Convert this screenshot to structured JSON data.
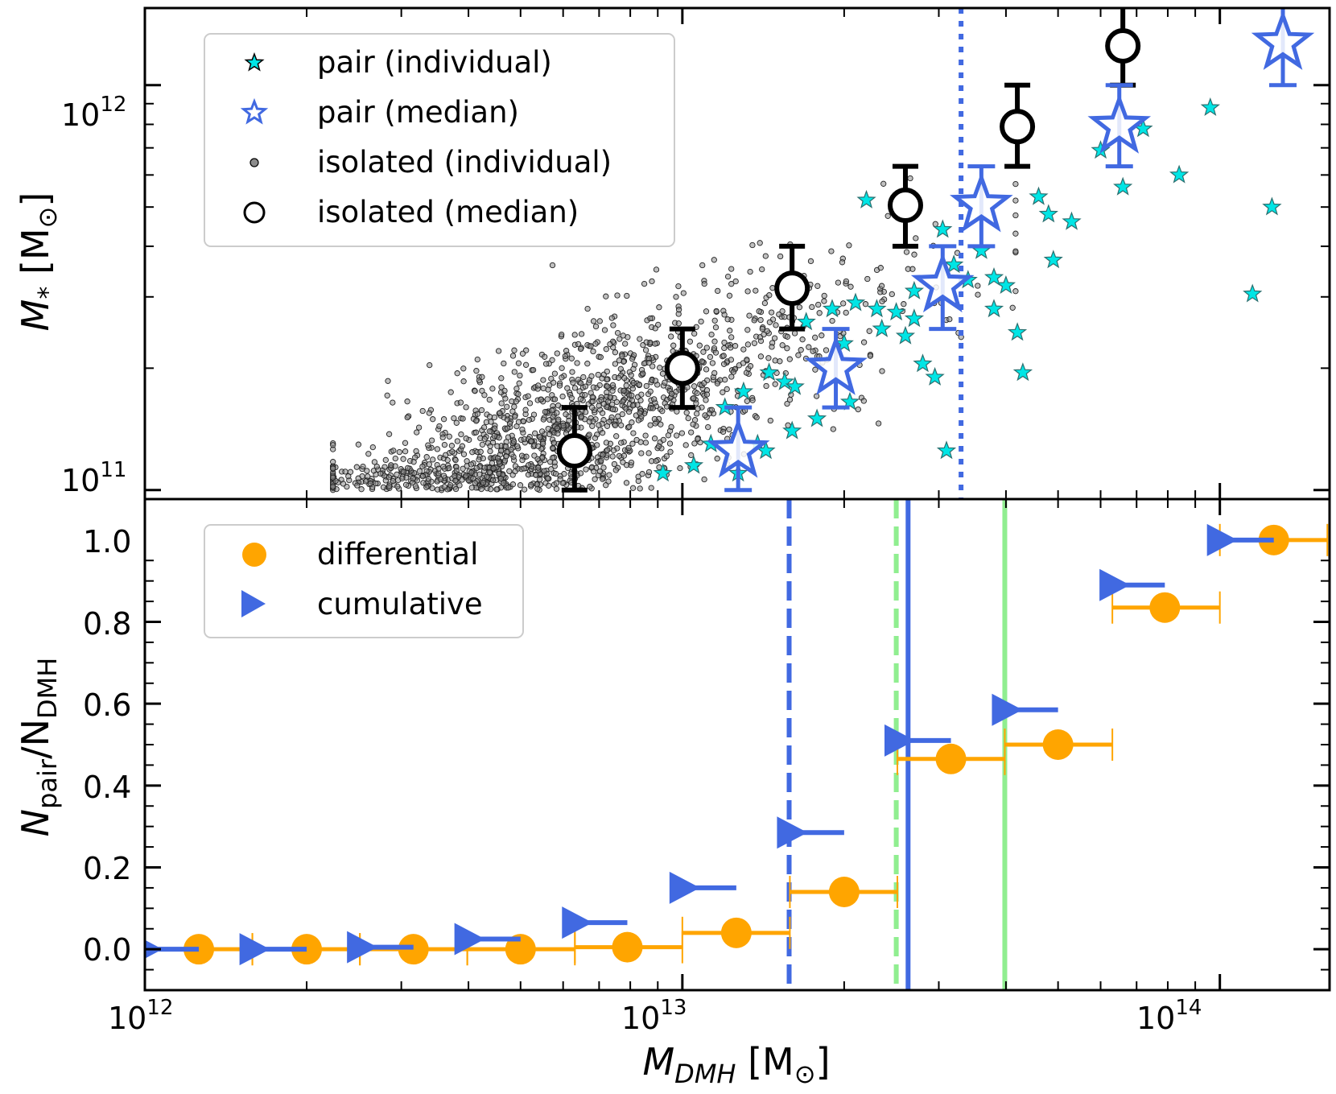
{
  "chart_data": [
    {
      "type": "scatter",
      "panel": "top",
      "xscale": "log",
      "yscale": "log",
      "xlim": [
        1000000000000.0,
        160000000000000.0
      ],
      "ylim": [
        95000000000.0,
        1550000000000.0
      ],
      "ylabel": "M* [M⊙]",
      "ylabel_main": "M",
      "ylabel_sub": "*",
      "ylabel_rest": " [M",
      "ylabel_sun": "⊙",
      "ylabel_close": "]",
      "ytick_labels": [
        {
          "value": 100000000000.0,
          "base": "10",
          "exp": "11"
        },
        {
          "value": 1000000000000.0,
          "base": "10",
          "exp": "12"
        }
      ],
      "vline_dotted_x": 33000000000000.0,
      "legend": {
        "position": "upper-left",
        "entries": [
          {
            "label": "pair (individual)"
          },
          {
            "label": "pair (median)"
          },
          {
            "label": "isolated (individual)"
          },
          {
            "label": "isolated (median)"
          }
        ]
      },
      "series": [
        {
          "name": "isolated (median)",
          "x": [
            6300000000000.0,
            10000000000000.0,
            16000000000000.0,
            26000000000000.0,
            42000000000000.0,
            66000000000000.0
          ],
          "y": [
            125000000000.0,
            200000000000.0,
            315000000000.0,
            505000000000.0,
            790000000000.0,
            1250000000000.0
          ],
          "yerr_low": [
            100000000000.0,
            160000000000.0,
            250000000000.0,
            400000000000.0,
            630000000000.0,
            1000000000000.0
          ],
          "yerr_high": [
            160000000000.0,
            250000000000.0,
            400000000000.0,
            630000000000.0,
            1000000000000.0,
            1600000000000.0
          ]
        },
        {
          "name": "pair (median)",
          "x": [
            12700000000000.0,
            19300000000000.0,
            30500000000000.0,
            36000000000000.0,
            65000000000000.0,
            131000000000000.0
          ],
          "y": [
            125000000000.0,
            200000000000.0,
            320000000000.0,
            505000000000.0,
            790000000000.0,
            1270000000000.0
          ],
          "yerr_low": [
            100000000000.0,
            160000000000.0,
            250000000000.0,
            400000000000.0,
            630000000000.0,
            1000000000000.0
          ],
          "yerr_high": [
            160000000000.0,
            250000000000.0,
            400000000000.0,
            630000000000.0,
            1000000000000.0,
            1600000000000.0
          ]
        },
        {
          "name": "pair (individual)",
          "x": [
            9200000000000.0,
            10500000000000.0,
            11300000000000.0,
            12000000000000.0,
            13000000000000.0,
            13800000000000.0,
            14500000000000.0,
            15500000000000.0,
            16200000000000.0,
            17000000000000.0,
            17800000000000.0,
            19000000000000.0,
            20000000000000.0,
            21000000000000.0,
            22000000000000.0,
            23500000000000.0,
            25000000000000.0,
            26000000000000.0,
            27000000000000.0,
            28000000000000.0,
            29500000000000.0,
            31000000000000.0,
            32000000000000.0,
            34000000000000.0,
            36000000000000.0,
            38000000000000.0,
            40000000000000.0,
            43000000000000.0,
            46000000000000.0,
            49000000000000.0,
            53000000000000.0,
            60000000000000.0,
            66000000000000.0,
            72000000000000.0,
            84000000000000.0,
            96000000000000.0,
            115000000000000.0,
            125000000000000.0,
            20500000000000.0,
            27000000000000.0,
            30500000000000.0,
            38000000000000.0,
            42000000000000.0,
            12700000000000.0,
            16000000000000.0,
            14300000000000.0,
            23000000000000.0,
            48000000000000.0
          ],
          "y": [
            110000000000.0,
            115000000000.0,
            130000000000.0,
            160000000000.0,
            175000000000.0,
            130000000000.0,
            195000000000.0,
            185000000000.0,
            180000000000.0,
            260000000000.0,
            150000000000.0,
            280000000000.0,
            230000000000.0,
            290000000000.0,
            520000000000.0,
            250000000000.0,
            275000000000.0,
            240000000000.0,
            310000000000.0,
            205000000000.0,
            190000000000.0,
            125000000000.0,
            360000000000.0,
            330000000000.0,
            390000000000.0,
            280000000000.0,
            320000000000.0,
            195000000000.0,
            530000000000.0,
            370000000000.0,
            460000000000.0,
            690000000000.0,
            560000000000.0,
            780000000000.0,
            600000000000.0,
            880000000000.0,
            305000000000.0,
            500000000000.0,
            165000000000.0,
            265000000000.0,
            440000000000.0,
            335000000000.0,
            245000000000.0,
            110000000000.0,
            140000000000.0,
            125000000000.0,
            280000000000.0,
            480000000000.0
          ]
        }
      ]
    },
    {
      "type": "scatter",
      "panel": "bottom",
      "xscale": "log",
      "xlim": [
        1000000000000.0,
        160000000000000.0
      ],
      "ylim": [
        -0.1,
        1.1
      ],
      "xlabel": "M_DMH [M⊙]",
      "xlabel_main": "M",
      "xlabel_sub": "DMH",
      "xlabel_rest": " [M",
      "xlabel_sun": "⊙",
      "xlabel_close": "]",
      "ylabel": "N_pair/N_DMH",
      "ylabel_n1": "N",
      "ylabel_sub1": "pair",
      "ylabel_slash": "/N",
      "ylabel_sub2": "DMH",
      "xtick_labels": [
        {
          "value": 1000000000000.0,
          "base": "10",
          "exp": "12"
        },
        {
          "value": 10000000000000.0,
          "base": "10",
          "exp": "13"
        },
        {
          "value": 100000000000000.0,
          "base": "10",
          "exp": "14"
        }
      ],
      "ytick_labels": [
        {
          "value": 0.0,
          "label": "0.0"
        },
        {
          "value": 0.2,
          "label": "0.2"
        },
        {
          "value": 0.4,
          "label": "0.4"
        },
        {
          "value": 0.6,
          "label": "0.6"
        },
        {
          "value": 0.8,
          "label": "0.8"
        },
        {
          "value": 1.0,
          "label": "1.0"
        }
      ],
      "vlines": [
        {
          "x": 15800000000000.0,
          "color": "#4169e1",
          "style": "dashed"
        },
        {
          "x": 26300000000000.0,
          "color": "#4169e1",
          "style": "solid"
        },
        {
          "x": 25000000000000.0,
          "color": "#90ee90",
          "style": "dashed"
        },
        {
          "x": 39800000000000.0,
          "color": "#90ee90",
          "style": "solid"
        }
      ],
      "legend": {
        "position": "upper-left",
        "entries": [
          {
            "label": "differential"
          },
          {
            "label": "cumulative"
          }
        ]
      },
      "series": [
        {
          "name": "differential",
          "color": "#ffa500",
          "x": [
            1260000000000.0,
            2000000000000.0,
            3160000000000.0,
            5000000000000.0,
            7900000000000.0,
            12600000000000.0,
            20000000000000.0,
            31600000000000.0,
            50000000000000.0,
            79000000000000.0,
            126000000000000.0
          ],
          "y": [
            0.0,
            0.0,
            0.0,
            0.0,
            0.005,
            0.04,
            0.14,
            0.465,
            0.5,
            0.835,
            1.0
          ],
          "xerr_low": [
            1000000000000.0,
            1585000000000.0,
            2512000000000.0,
            3980000000000.0,
            6310000000000.0,
            10000000000000.0,
            15850000000000.0,
            25120000000000.0,
            39800000000000.0,
            63100000000000.0,
            100000000000000.0
          ],
          "xerr_high": [
            1585000000000.0,
            2512000000000.0,
            3980000000000.0,
            6310000000000.0,
            10000000000000.0,
            15850000000000.0,
            25120000000000.0,
            39800000000000.0,
            63100000000000.0,
            100000000000000.0,
            158500000000000.0
          ]
        },
        {
          "name": "cumulative",
          "color": "#4169e1",
          "x": [
            1000000000000.0,
            1585000000000.0,
            2512000000000.0,
            3980000000000.0,
            6310000000000.0,
            10000000000000.0,
            15850000000000.0,
            25120000000000.0,
            39800000000000.0,
            63100000000000.0,
            100000000000000.0
          ],
          "y": [
            0.0,
            0.0,
            0.005,
            0.025,
            0.065,
            0.15,
            0.285,
            0.51,
            0.585,
            0.89,
            1.0
          ],
          "x_to": [
            1260000000000.0,
            2000000000000.0,
            3160000000000.0,
            5000000000000.0,
            7900000000000.0,
            12600000000000.0,
            20000000000000.0,
            31600000000000.0,
            50000000000000.0,
            79000000000000.0,
            126000000000000.0
          ]
        }
      ]
    }
  ]
}
